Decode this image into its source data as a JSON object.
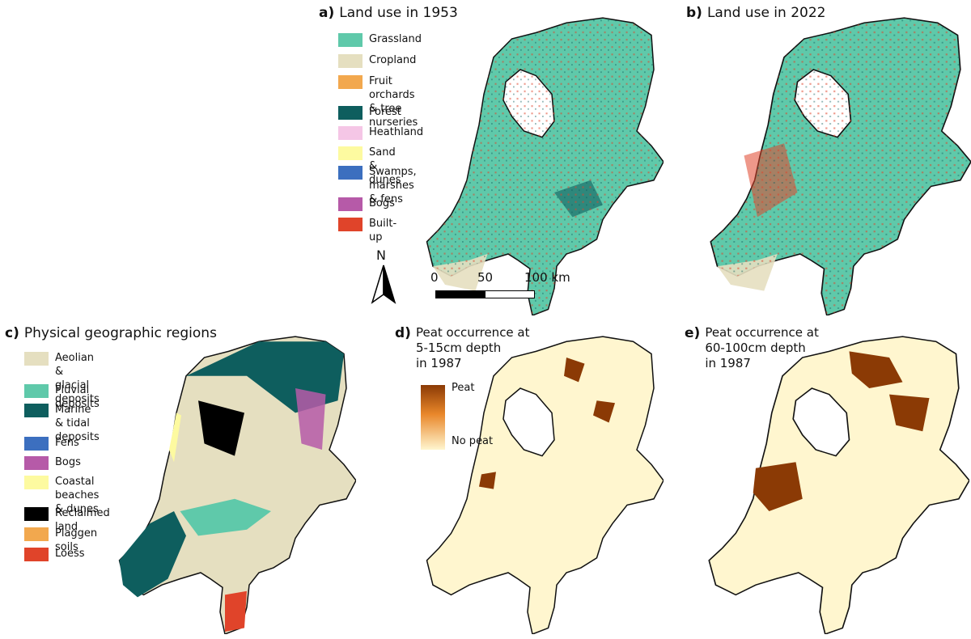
{
  "panels": {
    "a": {
      "letter": "a)",
      "title": "Land use in 1953"
    },
    "b": {
      "letter": "b)",
      "title": "Land use in 2022"
    },
    "c": {
      "letter": "c)",
      "title": "Physical geographic regions"
    },
    "d": {
      "letter": "d)",
      "title": "Peat occurrence at\n5-15cm depth\nin 1987"
    },
    "e": {
      "letter": "e)",
      "title": "Peat occurrence at\n60-100cm depth\nin 1987"
    }
  },
  "landuse_legend": [
    {
      "label": "Grassland",
      "color": "#5fc9aa"
    },
    {
      "label": "Cropland",
      "color": "#e5dfc0"
    },
    {
      "label": "Fruit orchards\n& tree nurseries",
      "color": "#f2a84e"
    },
    {
      "label": "Forest",
      "color": "#0e5e5e"
    },
    {
      "label": "Heathland",
      "color": "#f5c6e6"
    },
    {
      "label": "Sand & dunes",
      "color": "#fdfaa0"
    },
    {
      "label": "Swamps, marshes\n& fens",
      "color": "#3c6fbf"
    },
    {
      "label": "Bogs",
      "color": "#b65aa8"
    },
    {
      "label": "Built-up",
      "color": "#e0442a"
    }
  ],
  "region_legend": [
    {
      "label": "Aeolian & glacial\ndeposits",
      "color": "#e5dfc0"
    },
    {
      "label": "Fluvial deposits",
      "color": "#5fc9aa"
    },
    {
      "label": "Marine & tidal\ndeposits",
      "color": "#0e5e5e"
    },
    {
      "label": "Fens",
      "color": "#3c6fbf"
    },
    {
      "label": "Bogs",
      "color": "#b65aa8"
    },
    {
      "label": "Coastal beaches\n& dunes",
      "color": "#fdfaa0"
    },
    {
      "label": "Reclaimed land",
      "color": "#000000"
    },
    {
      "label": "Plaggen soils",
      "color": "#f2a84e"
    },
    {
      "label": "Loess",
      "color": "#e0442a"
    }
  ],
  "scale": {
    "ticks": [
      "0",
      "50",
      "100 km"
    ]
  },
  "north_label": "N",
  "peat_legend": {
    "high": "Peat",
    "low": "No peat",
    "high_color": "#8b3a05",
    "low_color": "#fff6cf"
  }
}
